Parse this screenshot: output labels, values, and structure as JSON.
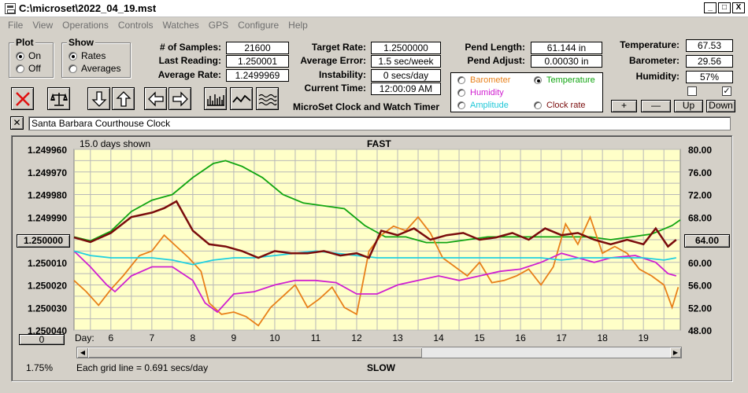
{
  "window": {
    "title": "C:\\microset\\2022_04_19.mst",
    "min": "_",
    "max": "□",
    "close": "X"
  },
  "menu": [
    "File",
    "View",
    "Operations",
    "Controls",
    "Watches",
    "GPS",
    "Configure",
    "Help"
  ],
  "plot_group": {
    "title": "Plot",
    "on": "On",
    "off": "Off",
    "selected": "On"
  },
  "show_group": {
    "title": "Show",
    "rates": "Rates",
    "averages": "Averages",
    "selected": "Rates"
  },
  "stats": {
    "samples_label": "# of Samples:",
    "samples": "21600",
    "last_label": "Last Reading:",
    "last": "1.250001",
    "avg_label": "Average Rate:",
    "avg": "1.2499969",
    "target_label": "Target Rate:",
    "target": "1.2500000",
    "avgerr_label": "Average Error:",
    "avgerr": "1.5 sec/week",
    "instab_label": "Instability:",
    "instab": "0 secs/day",
    "time_label": "Current Time:",
    "time": "12:00:09 AM",
    "pendlen_label": "Pend Length:",
    "pendlen": "61.144 in",
    "pendadj_label": "Pend Adjust:",
    "pendadj": "0.00030 in",
    "temp_label": "Temperature:",
    "temp": "67.53",
    "baro_label": "Barometer:",
    "baro": "29.56",
    "hum_label": "Humidity:",
    "hum": "57%"
  },
  "app_name": "MicroSet Clock and Watch Timer",
  "legend": {
    "barometer": "Barometer",
    "temperature": "Temperature",
    "humidity": "Humidity",
    "amplitude": "Amplitude",
    "clock_rate": "Clock rate",
    "selected": "Temperature",
    "colors": {
      "barometer": "#e8801a",
      "temperature": "#11a511",
      "humidity": "#d020d0",
      "amplitude": "#20d0e0",
      "clock_rate": "#7a0c0c"
    }
  },
  "adjust_buttons": {
    "plus": "+",
    "minus": "—",
    "up": "Up",
    "down": "Down"
  },
  "checkboxes": {
    "left": "",
    "right": "✓"
  },
  "clock_name": "Santa Barbara Courthouse Clock",
  "clock_close": "✕",
  "plot": {
    "days_shown": "15.0 days shown",
    "fast": "FAST",
    "slow": "SLOW",
    "center_value": "1.250000",
    "right_center": "64.00",
    "zero_button": "0",
    "percent": "1.75%",
    "grid_note": "Each grid line = 0.691 secs/day",
    "day_label": "Day:"
  },
  "chart_data": {
    "type": "line",
    "x_label": "Day:",
    "x_ticks": [
      "6",
      "7",
      "8",
      "9",
      "10",
      "11",
      "12",
      "13",
      "14",
      "15",
      "16",
      "17",
      "18",
      "19"
    ],
    "x_range": [
      5.1,
      19.9
    ],
    "y_left_ticks": [
      "1.249960",
      "1.249970",
      "1.249980",
      "1.249990",
      "1.250000",
      "1.250010",
      "1.250020",
      "1.250030",
      "1.250040"
    ],
    "y_left_range": [
      1.24996,
      1.25004
    ],
    "y_right_ticks": [
      "80.00",
      "76.00",
      "72.00",
      "68.00",
      "64.00",
      "60.00",
      "56.00",
      "52.00",
      "48.00"
    ],
    "y_right_range": [
      48,
      80
    ],
    "grid": true,
    "series": [
      {
        "name": "Temperature",
        "color": "#11a511",
        "axis": "right",
        "x": [
          5.1,
          5.5,
          6,
          6.5,
          7,
          7.5,
          8,
          8.5,
          8.8,
          9.2,
          9.7,
          10.2,
          10.7,
          11.2,
          11.7,
          12.2,
          12.7,
          13.2,
          13.7,
          14.2,
          14.7,
          15.2,
          15.7,
          16.2,
          16.7,
          17.2,
          17.7,
          18.2,
          18.7,
          19.2,
          19.7,
          19.9
        ],
        "y": [
          64.5,
          63.8,
          65.5,
          69,
          71,
          72,
          75,
          77.5,
          78,
          77,
          75,
          72,
          70.5,
          70,
          69.5,
          66.5,
          64.5,
          64.5,
          63.5,
          63.5,
          64,
          64.5,
          64.5,
          64.5,
          64.5,
          64.5,
          64.5,
          64,
          64.5,
          65,
          66.5,
          67.5
        ]
      },
      {
        "name": "Clock rate",
        "color": "#7a0c0c",
        "axis": "left",
        "x": [
          5.1,
          5.5,
          6,
          6.5,
          7,
          7.3,
          7.6,
          8,
          8.4,
          8.8,
          9.2,
          9.6,
          10,
          10.4,
          10.8,
          11.2,
          11.6,
          12,
          12.3,
          12.6,
          13,
          13.4,
          13.8,
          14.2,
          14.6,
          15,
          15.4,
          15.8,
          16.2,
          16.6,
          17,
          17.4,
          17.8,
          18.2,
          18.6,
          19,
          19.3,
          19.6,
          19.8
        ],
        "y": [
          1.249999,
          1.250001,
          1.249997,
          1.24999,
          1.249988,
          1.249986,
          1.249983,
          1.249996,
          1.250002,
          1.250003,
          1.250005,
          1.250008,
          1.250005,
          1.250006,
          1.250006,
          1.250005,
          1.250007,
          1.250006,
          1.250008,
          1.249996,
          1.249998,
          1.249995,
          1.25,
          1.249998,
          1.249997,
          1.25,
          1.249999,
          1.249997,
          1.25,
          1.249995,
          1.249998,
          1.249997,
          1.25,
          1.250002,
          1.25,
          1.250002,
          1.249995,
          1.250003,
          1.25
        ]
      },
      {
        "name": "Humidity",
        "color": "#d020d0",
        "axis": "left",
        "x": [
          5.1,
          5.5,
          5.9,
          6.1,
          6.5,
          7,
          7.5,
          8,
          8.3,
          8.6,
          9,
          9.5,
          10,
          10.5,
          11,
          11.5,
          12,
          12.5,
          13,
          13.5,
          14,
          14.5,
          15,
          15.5,
          16,
          16.5,
          17,
          17.4,
          17.8,
          18.2,
          18.8,
          19.3,
          19.6,
          19.8
        ],
        "y": [
          1.250005,
          1.250012,
          1.25002,
          1.250023,
          1.250016,
          1.250012,
          1.250012,
          1.250018,
          1.250028,
          1.250032,
          1.250024,
          1.250023,
          1.25002,
          1.250018,
          1.250018,
          1.250019,
          1.250024,
          1.250024,
          1.25002,
          1.250018,
          1.250016,
          1.250018,
          1.250016,
          1.250014,
          1.250013,
          1.25001,
          1.250006,
          1.250008,
          1.25001,
          1.250008,
          1.250007,
          1.25001,
          1.250015,
          1.250016
        ]
      },
      {
        "name": "Amplitude",
        "color": "#20d0e0",
        "axis": "left",
        "x": [
          5.1,
          5.5,
          6,
          6.5,
          7,
          7.5,
          8,
          8.5,
          9,
          9.5,
          10,
          10.5,
          11,
          11.5,
          12,
          12.5,
          13,
          13.5,
          14,
          14.5,
          15,
          15.5,
          16,
          16.5,
          17,
          17.5,
          18,
          18.5,
          19,
          19.5,
          19.8
        ],
        "y": [
          1.250005,
          1.250007,
          1.250008,
          1.250008,
          1.250008,
          1.250009,
          1.250011,
          1.250009,
          1.250008,
          1.250008,
          1.250007,
          1.250006,
          1.250005,
          1.250006,
          1.250007,
          1.250008,
          1.250008,
          1.250008,
          1.250008,
          1.250008,
          1.250008,
          1.250008,
          1.250008,
          1.250008,
          1.250009,
          1.250008,
          1.250008,
          1.250008,
          1.250008,
          1.250009,
          1.250008
        ]
      },
      {
        "name": "Barometer",
        "color": "#e8801a",
        "axis": "left",
        "x": [
          5.1,
          5.4,
          5.7,
          6,
          6.3,
          6.7,
          7,
          7.3,
          7.6,
          7.9,
          8.2,
          8.4,
          8.7,
          9,
          9.3,
          9.6,
          9.9,
          10.2,
          10.5,
          10.8,
          11.1,
          11.4,
          11.7,
          12,
          12.3,
          12.6,
          12.9,
          13.2,
          13.5,
          13.8,
          14.1,
          14.4,
          14.7,
          15,
          15.3,
          15.6,
          15.9,
          16.2,
          16.5,
          16.8,
          17.1,
          17.4,
          17.7,
          18,
          18.3,
          18.6,
          18.9,
          19.2,
          19.5,
          19.7,
          19.85
        ],
        "y": [
          1.250018,
          1.250023,
          1.250029,
          1.250022,
          1.250016,
          1.250007,
          1.250005,
          1.249998,
          1.250003,
          1.250008,
          1.250014,
          1.250028,
          1.250033,
          1.250032,
          1.250034,
          1.250038,
          1.25003,
          1.250025,
          1.25002,
          1.25003,
          1.250026,
          1.250021,
          1.25003,
          1.250033,
          1.250005,
          1.249998,
          1.249994,
          1.249996,
          1.24999,
          1.249997,
          1.250008,
          1.250012,
          1.250016,
          1.25001,
          1.250019,
          1.250018,
          1.250016,
          1.250013,
          1.25002,
          1.250012,
          1.249993,
          1.250002,
          1.24999,
          1.250006,
          1.250003,
          1.250006,
          1.250013,
          1.250016,
          1.25002,
          1.25003,
          1.250021
        ]
      }
    ]
  }
}
